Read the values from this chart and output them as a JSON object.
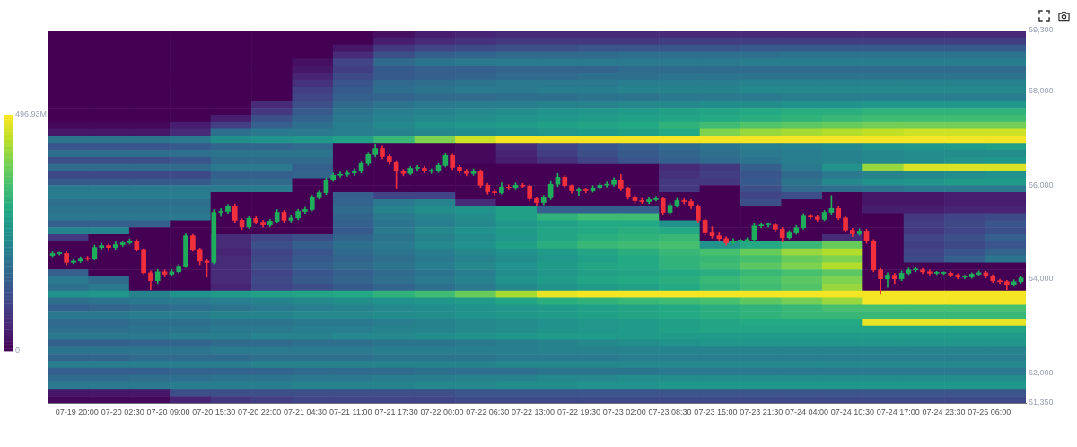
{
  "chart_data": [
    {
      "type": "heatmap",
      "categories": [
        null,
        null,
        null,
        null,
        null,
        null,
        null,
        null,
        null,
        null,
        null,
        null,
        null,
        null,
        null,
        null,
        null,
        null,
        null,
        null,
        null,
        null,
        null,
        null
      ],
      "y_categories": [
        null,
        null,
        null,
        null,
        null,
        null,
        null,
        null,
        null,
        null,
        null,
        null,
        null,
        null,
        null,
        null,
        null,
        null,
        null,
        null,
        null,
        null,
        null,
        null,
        null,
        null,
        null,
        null,
        null,
        null,
        null,
        null,
        null,
        null,
        null,
        null,
        null,
        null,
        null,
        null,
        null,
        null,
        null,
        null,
        null,
        null,
        null,
        null,
        null,
        null,
        null,
        null,
        null
      ],
      "cells": [
        [
          0,
          0,
          0,
          0,
          0,
          0,
          0,
          0,
          20,
          40,
          50,
          60,
          60,
          60,
          60,
          60,
          60,
          60,
          60,
          60,
          60,
          60,
          60,
          60
        ],
        [
          0,
          0,
          0,
          0,
          0,
          0,
          0,
          0,
          40,
          60,
          70,
          80,
          80,
          80,
          80,
          90,
          90,
          90,
          90,
          90,
          90,
          90,
          90,
          90
        ],
        [
          0,
          0,
          0,
          0,
          0,
          0,
          0,
          30,
          80,
          100,
          110,
          120,
          120,
          130,
          130,
          130,
          130,
          140,
          140,
          140,
          140,
          140,
          140,
          140
        ],
        [
          0,
          0,
          0,
          0,
          0,
          0,
          0,
          60,
          120,
          150,
          160,
          170,
          170,
          170,
          180,
          180,
          180,
          180,
          190,
          190,
          190,
          190,
          190,
          190
        ],
        [
          0,
          0,
          0,
          0,
          0,
          0,
          20,
          100,
          170,
          190,
          200,
          200,
          200,
          200,
          200,
          200,
          200,
          210,
          210,
          210,
          210,
          210,
          210,
          210
        ],
        [
          0,
          0,
          0,
          0,
          0,
          0,
          30,
          90,
          140,
          150,
          150,
          160,
          160,
          160,
          170,
          170,
          170,
          170,
          170,
          170,
          170,
          170,
          170,
          170
        ],
        [
          0,
          0,
          0,
          0,
          0,
          0,
          50,
          110,
          140,
          150,
          160,
          170,
          170,
          180,
          180,
          190,
          190,
          190,
          190,
          190,
          190,
          190,
          190,
          190
        ],
        [
          0,
          0,
          0,
          0,
          0,
          0,
          70,
          130,
          170,
          180,
          190,
          200,
          200,
          200,
          210,
          210,
          210,
          220,
          220,
          220,
          220,
          220,
          220,
          220
        ],
        [
          0,
          0,
          0,
          0,
          0,
          0,
          90,
          140,
          180,
          190,
          200,
          200,
          210,
          210,
          220,
          220,
          220,
          230,
          230,
          230,
          230,
          230,
          230,
          230
        ],
        [
          0,
          0,
          0,
          0,
          0,
          0,
          100,
          150,
          160,
          170,
          170,
          180,
          180,
          190,
          190,
          200,
          200,
          200,
          210,
          210,
          210,
          210,
          210,
          210
        ],
        [
          0,
          0,
          0,
          0,
          0,
          60,
          120,
          170,
          190,
          200,
          210,
          210,
          220,
          220,
          230,
          230,
          240,
          240,
          250,
          250,
          260,
          260,
          260,
          260
        ],
        [
          0,
          0,
          0,
          0,
          0,
          80,
          140,
          190,
          210,
          220,
          230,
          240,
          250,
          260,
          270,
          280,
          290,
          300,
          310,
          310,
          320,
          320,
          320,
          320
        ],
        [
          0,
          0,
          0,
          0,
          40,
          120,
          160,
          200,
          220,
          230,
          240,
          250,
          260,
          270,
          280,
          290,
          300,
          310,
          320,
          330,
          340,
          340,
          340,
          340
        ],
        [
          10,
          10,
          10,
          40,
          90,
          150,
          180,
          210,
          230,
          250,
          260,
          270,
          280,
          290,
          300,
          320,
          340,
          360,
          370,
          380,
          390,
          390,
          390,
          390
        ],
        [
          30,
          30,
          30,
          60,
          180,
          200,
          200,
          210,
          220,
          230,
          240,
          250,
          260,
          270,
          280,
          300,
          400,
          420,
          430,
          440,
          450,
          460,
          460,
          460
        ],
        [
          190,
          190,
          190,
          200,
          240,
          250,
          260,
          280,
          330,
          400,
          460,
          490,
          490,
          490,
          490,
          490,
          490,
          490,
          490,
          490,
          490,
          490,
          490,
          490
        ],
        [
          130,
          130,
          130,
          140,
          160,
          160,
          170,
          0,
          0,
          0,
          10,
          60,
          100,
          130,
          150,
          170,
          190,
          210,
          220,
          230,
          250,
          260,
          270,
          280
        ],
        [
          180,
          180,
          180,
          180,
          190,
          190,
          190,
          0,
          0,
          0,
          10,
          50,
          90,
          120,
          140,
          160,
          180,
          200,
          210,
          220,
          230,
          240,
          240,
          240
        ],
        [
          120,
          120,
          120,
          130,
          170,
          170,
          170,
          0,
          0,
          0,
          10,
          40,
          70,
          100,
          130,
          150,
          170,
          190,
          210,
          220,
          230,
          240,
          250,
          260
        ],
        [
          170,
          170,
          170,
          170,
          200,
          200,
          150,
          0,
          0,
          0,
          0,
          0,
          0,
          0,
          0,
          60,
          80,
          150,
          200,
          250,
          420,
          470,
          470,
          470
        ],
        [
          110,
          110,
          110,
          110,
          150,
          150,
          160,
          0,
          0,
          0,
          0,
          0,
          0,
          0,
          0,
          70,
          90,
          130,
          170,
          200,
          220,
          230,
          240,
          250
        ],
        [
          140,
          140,
          140,
          140,
          170,
          170,
          0,
          0,
          0,
          0,
          0,
          0,
          0,
          0,
          0,
          80,
          80,
          140,
          190,
          230,
          250,
          260,
          270,
          270
        ],
        [
          200,
          200,
          200,
          200,
          200,
          200,
          0,
          0,
          0,
          0,
          0,
          0,
          0,
          0,
          0,
          80,
          0,
          120,
          170,
          180,
          190,
          200,
          200,
          200
        ],
        [
          210,
          210,
          210,
          210,
          0,
          0,
          0,
          150,
          100,
          100,
          0,
          0,
          0,
          0,
          0,
          0,
          0,
          100,
          120,
          0,
          30,
          30,
          40,
          40
        ],
        [
          180,
          180,
          180,
          180,
          0,
          0,
          0,
          160,
          200,
          220,
          60,
          0,
          0,
          0,
          0,
          0,
          0,
          120,
          0,
          0,
          30,
          30,
          40,
          40
        ],
        [
          190,
          190,
          190,
          190,
          0,
          0,
          0,
          170,
          220,
          240,
          250,
          280,
          150,
          150,
          150,
          0,
          0,
          0,
          0,
          0,
          40,
          40,
          50,
          50
        ],
        [
          200,
          200,
          200,
          200,
          0,
          0,
          0,
          160,
          200,
          220,
          240,
          280,
          320,
          340,
          340,
          0,
          0,
          0,
          0,
          0,
          0,
          80,
          100,
          110
        ],
        [
          150,
          150,
          150,
          0,
          0,
          0,
          0,
          150,
          190,
          210,
          230,
          260,
          280,
          300,
          300,
          250,
          0,
          0,
          0,
          0,
          0,
          90,
          110,
          130
        ],
        [
          220,
          220,
          0,
          0,
          0,
          0,
          0,
          140,
          200,
          230,
          250,
          270,
          290,
          300,
          310,
          300,
          0,
          0,
          0,
          0,
          0,
          80,
          100,
          120
        ],
        [
          80,
          0,
          0,
          0,
          60,
          100,
          120,
          160,
          190,
          220,
          240,
          260,
          290,
          310,
          320,
          330,
          0,
          0,
          0,
          60,
          0,
          100,
          120,
          150
        ],
        [
          0,
          0,
          0,
          0,
          60,
          120,
          150,
          180,
          200,
          230,
          250,
          280,
          310,
          330,
          340,
          350,
          250,
          300,
          330,
          380,
          0,
          90,
          110,
          130
        ],
        [
          0,
          0,
          0,
          0,
          50,
          100,
          130,
          170,
          190,
          210,
          230,
          250,
          270,
          290,
          310,
          330,
          350,
          380,
          420,
          440,
          0,
          100,
          130,
          160
        ],
        [
          0,
          0,
          0,
          0,
          60,
          110,
          140,
          160,
          180,
          200,
          220,
          240,
          260,
          280,
          300,
          320,
          330,
          350,
          380,
          400,
          0,
          110,
          150,
          190
        ],
        [
          0,
          0,
          0,
          0,
          60,
          120,
          150,
          170,
          190,
          210,
          230,
          250,
          270,
          290,
          300,
          320,
          340,
          370,
          400,
          440,
          0,
          0,
          0,
          0
        ],
        [
          150,
          0,
          0,
          0,
          60,
          100,
          130,
          150,
          170,
          190,
          210,
          240,
          260,
          280,
          290,
          300,
          310,
          330,
          350,
          370,
          0,
          0,
          0,
          0
        ],
        [
          200,
          170,
          0,
          0,
          60,
          110,
          140,
          160,
          180,
          200,
          220,
          250,
          270,
          290,
          300,
          310,
          330,
          350,
          370,
          400,
          0,
          0,
          0,
          0
        ],
        [
          180,
          200,
          0,
          0,
          50,
          100,
          120,
          140,
          160,
          180,
          200,
          230,
          250,
          270,
          280,
          300,
          320,
          340,
          360,
          420,
          0,
          0,
          0,
          0
        ],
        [
          250,
          260,
          220,
          250,
          270,
          280,
          290,
          300,
          320,
          340,
          380,
          430,
          480,
          490,
          490,
          490,
          490,
          490,
          490,
          490,
          490,
          490,
          490,
          490
        ],
        [
          180,
          190,
          200,
          200,
          210,
          220,
          230,
          240,
          250,
          260,
          270,
          290,
          310,
          320,
          330,
          340,
          350,
          370,
          390,
          420,
          490,
          490,
          490,
          490
        ],
        [
          150,
          160,
          170,
          180,
          190,
          200,
          210,
          220,
          230,
          240,
          250,
          260,
          270,
          280,
          290,
          300,
          310,
          320,
          330,
          350,
          350,
          350,
          350,
          350
        ],
        [
          200,
          200,
          210,
          210,
          220,
          220,
          230,
          230,
          240,
          240,
          250,
          260,
          270,
          280,
          290,
          300,
          310,
          320,
          330,
          330,
          330,
          330,
          330,
          330
        ],
        [
          170,
          170,
          180,
          180,
          190,
          190,
          200,
          200,
          210,
          220,
          230,
          240,
          250,
          260,
          270,
          280,
          290,
          300,
          300,
          300,
          480,
          480,
          480,
          480
        ],
        [
          180,
          180,
          190,
          190,
          200,
          200,
          210,
          210,
          220,
          220,
          230,
          240,
          250,
          260,
          270,
          280,
          290,
          290,
          290,
          290,
          290,
          290,
          290,
          290
        ],
        [
          200,
          200,
          200,
          210,
          210,
          220,
          220,
          230,
          230,
          240,
          250,
          260,
          270,
          270,
          270,
          270,
          270,
          270,
          270,
          270,
          270,
          270,
          270,
          270
        ],
        [
          150,
          150,
          160,
          160,
          170,
          170,
          180,
          180,
          190,
          190,
          200,
          210,
          220,
          230,
          240,
          250,
          260,
          260,
          260,
          260,
          260,
          260,
          260,
          260
        ],
        [
          190,
          190,
          190,
          190,
          200,
          200,
          200,
          200,
          210,
          210,
          210,
          210,
          220,
          220,
          220,
          220,
          220,
          220,
          220,
          220,
          220,
          220,
          220,
          220
        ],
        [
          160,
          160,
          170,
          170,
          170,
          180,
          180,
          180,
          190,
          190,
          190,
          200,
          200,
          200,
          210,
          210,
          210,
          210,
          210,
          210,
          210,
          210,
          210,
          210
        ],
        [
          210,
          210,
          210,
          210,
          210,
          220,
          220,
          220,
          220,
          220,
          220,
          230,
          230,
          230,
          230,
          230,
          230,
          230,
          230,
          230,
          230,
          230,
          230,
          230
        ],
        [
          150,
          150,
          150,
          160,
          160,
          160,
          170,
          170,
          170,
          180,
          180,
          180,
          190,
          190,
          190,
          200,
          200,
          200,
          200,
          200,
          200,
          200,
          200,
          200
        ],
        [
          170,
          170,
          180,
          180,
          190,
          190,
          200,
          200,
          210,
          210,
          220,
          220,
          230,
          230,
          240,
          240,
          240,
          240,
          240,
          240,
          240,
          240,
          240,
          240
        ],
        [
          200,
          200,
          200,
          210,
          210,
          210,
          220,
          220,
          220,
          230,
          230,
          240,
          240,
          250,
          250,
          260,
          260,
          260,
          260,
          260,
          260,
          260,
          260,
          260
        ],
        [
          30,
          30,
          30,
          120,
          120,
          120,
          120,
          120,
          120,
          120,
          130,
          130,
          130,
          130,
          130,
          130,
          130,
          130,
          130,
          130,
          130,
          130,
          130,
          130
        ],
        [
          10,
          10,
          10,
          50,
          80,
          90,
          100,
          100,
          100,
          100,
          110,
          110,
          110,
          110,
          110,
          110,
          110,
          110,
          110,
          110,
          110,
          110,
          110,
          110
        ]
      ],
      "clim": [
        0,
        496.93
      ],
      "cticks": [
        {
          "value": 0,
          "label": "0"
        },
        {
          "value": 496.93,
          "label": "496.93M"
        }
      ]
    },
    {
      "type": "candlestick",
      "xlim": [
        "--07-19T15:48",
        "--07-25T11:12"
      ],
      "xticks": [
        {
          "value": "--07-19T20:00",
          "label": "07-19 20:00"
        },
        {
          "value": "--07-20T02:30",
          "label": "07-20 02:30"
        },
        {
          "value": "--07-20T09:00",
          "label": "07-20 09:00"
        },
        {
          "value": "--07-20T15:30",
          "label": "07-20 15:30"
        },
        {
          "value": "--07-20T22:00",
          "label": "07-20 22:00"
        },
        {
          "value": "--07-21T04:30",
          "label": "07-21 04:30"
        },
        {
          "value": "--07-21T11:00",
          "label": "07-21 11:00"
        },
        {
          "value": "--07-21T17:30",
          "label": "07-21 17:30"
        },
        {
          "value": "--07-22T00:00",
          "label": "07-22 00:00"
        },
        {
          "value": "--07-22T06:30",
          "label": "07-22 06:30"
        },
        {
          "value": "--07-22T13:00",
          "label": "07-22 13:00"
        },
        {
          "value": "--07-22T19:30",
          "label": "07-22 19:30"
        },
        {
          "value": "--07-23T02:00",
          "label": "07-23 02:00"
        },
        {
          "value": "--07-23T08:30",
          "label": "07-23 08:30"
        },
        {
          "value": "--07-23T15:00",
          "label": "07-23 15:00"
        },
        {
          "value": "--07-23T21:30",
          "label": "07-23 21:30"
        },
        {
          "value": "--07-24T04:00",
          "label": "07-24 04:00"
        },
        {
          "value": "--07-24T10:30",
          "label": "07-24 10:30"
        },
        {
          "value": "--07-24T17:00",
          "label": "07-24 17:00"
        },
        {
          "value": "--07-24T23:30",
          "label": "07-24 23:30"
        },
        {
          "value": "--07-25T06:00",
          "label": "07-25 06:00"
        }
      ],
      "ylim": [
        61350,
        69300
      ],
      "yticks": [
        {
          "value": 61350,
          "label": "61,350"
        },
        {
          "value": 62000,
          "label": "62,000"
        },
        {
          "value": 64000,
          "label": "64,000"
        },
        {
          "value": 66000,
          "label": "66,000"
        },
        {
          "value": 68000,
          "label": "68,000"
        },
        {
          "value": 69300,
          "label": "69,300"
        }
      ],
      "x": [
        "--07-19T16:30",
        "--07-19T17:30",
        "--07-19T18:30",
        "--07-19T19:30",
        "--07-19T20:30",
        "--07-19T21:30",
        "--07-19T22:30",
        "--07-19T23:30",
        "--07-20T00:30",
        "--07-20T01:30",
        "--07-20T02:30",
        "--07-20T03:30",
        "--07-20T04:30",
        "--07-20T05:30",
        "--07-20T06:30",
        "--07-20T07:30",
        "--07-20T08:30",
        "--07-20T09:30",
        "--07-20T10:30",
        "--07-20T11:30",
        "--07-20T12:30",
        "--07-20T13:30",
        "--07-20T14:30",
        "--07-20T15:30",
        "--07-20T16:30",
        "--07-20T17:30",
        "--07-20T18:30",
        "--07-20T19:30",
        "--07-20T20:30",
        "--07-20T21:30",
        "--07-20T22:30",
        "--07-20T23:30",
        "--07-21T00:30",
        "--07-21T01:30",
        "--07-21T02:30",
        "--07-21T03:30",
        "--07-21T04:30",
        "--07-21T05:30",
        "--07-21T06:30",
        "--07-21T07:30",
        "--07-21T08:30",
        "--07-21T09:30",
        "--07-21T10:30",
        "--07-21T11:30",
        "--07-21T12:30",
        "--07-21T13:30",
        "--07-21T14:30",
        "--07-21T15:30",
        "--07-21T16:30",
        "--07-21T17:30",
        "--07-21T18:30",
        "--07-21T19:30",
        "--07-21T20:30",
        "--07-21T21:30",
        "--07-21T22:30",
        "--07-21T23:30",
        "--07-22T00:30",
        "--07-22T01:30",
        "--07-22T02:30",
        "--07-22T03:30",
        "--07-22T04:30",
        "--07-22T05:30",
        "--07-22T06:30",
        "--07-22T07:30",
        "--07-22T08:30",
        "--07-22T09:30",
        "--07-22T10:30",
        "--07-22T11:30",
        "--07-22T12:30",
        "--07-22T13:30",
        "--07-22T14:30",
        "--07-22T15:30",
        "--07-22T16:30",
        "--07-22T17:30",
        "--07-22T18:30",
        "--07-22T19:30",
        "--07-22T20:30",
        "--07-22T21:30",
        "--07-22T22:30",
        "--07-22T23:30",
        "--07-23T00:30",
        "--07-23T01:30",
        "--07-23T02:30",
        "--07-23T03:30",
        "--07-23T04:30",
        "--07-23T05:30",
        "--07-23T06:30",
        "--07-23T07:30",
        "--07-23T08:30",
        "--07-23T09:30",
        "--07-23T10:30",
        "--07-23T11:30",
        "--07-23T12:30",
        "--07-23T13:30",
        "--07-23T14:30",
        "--07-23T15:30",
        "--07-23T16:30",
        "--07-23T17:30",
        "--07-23T18:30",
        "--07-23T19:30",
        "--07-23T20:30",
        "--07-23T21:30",
        "--07-23T22:30",
        "--07-23T23:30",
        "--07-24T00:30",
        "--07-24T01:30",
        "--07-24T02:30",
        "--07-24T03:30",
        "--07-24T04:30",
        "--07-24T05:30",
        "--07-24T06:30",
        "--07-24T07:30",
        "--07-24T08:30",
        "--07-24T09:30",
        "--07-24T10:30",
        "--07-24T11:30",
        "--07-24T12:30",
        "--07-24T13:30",
        "--07-24T14:30",
        "--07-24T15:30",
        "--07-24T16:30",
        "--07-24T17:30",
        "--07-24T18:30",
        "--07-24T19:30",
        "--07-24T20:30",
        "--07-24T21:30",
        "--07-24T22:30",
        "--07-24T23:30",
        "--07-25T00:30",
        "--07-25T01:30",
        "--07-25T02:30",
        "--07-25T03:30",
        "--07-25T04:30",
        "--07-25T05:30",
        "--07-25T06:30",
        "--07-25T07:30",
        "--07-25T08:30",
        "--07-25T09:30",
        "--07-25T10:30"
      ],
      "ohlc": [
        [
          64500,
          64580,
          64470,
          64540
        ],
        [
          64540,
          64570,
          64510,
          64540
        ],
        [
          64540,
          64580,
          64300,
          64350
        ],
        [
          64350,
          64420,
          64320,
          64380
        ],
        [
          64380,
          64470,
          64350,
          64440
        ],
        [
          64440,
          64480,
          64390,
          64420
        ],
        [
          64420,
          64720,
          64400,
          64670
        ],
        [
          64670,
          64760,
          64620,
          64710
        ],
        [
          64710,
          64750,
          64600,
          64670
        ],
        [
          64670,
          64790,
          64630,
          64730
        ],
        [
          64730,
          64800,
          64690,
          64770
        ],
        [
          64770,
          64850,
          64740,
          64810
        ],
        [
          64810,
          64840,
          64590,
          64630
        ],
        [
          64630,
          64650,
          64100,
          64130
        ],
        [
          64130,
          64170,
          63770,
          63960
        ],
        [
          63960,
          64200,
          63900,
          64150
        ],
        [
          64150,
          64190,
          64040,
          64100
        ],
        [
          64100,
          64200,
          64060,
          64150
        ],
        [
          64150,
          64310,
          64120,
          64270
        ],
        [
          64270,
          64960,
          64240,
          64920
        ],
        [
          64920,
          64950,
          64590,
          64630
        ],
        [
          64630,
          64660,
          64300,
          64380
        ],
        [
          64380,
          64420,
          64040,
          64350
        ],
        [
          64350,
          65480,
          64320,
          65420
        ],
        [
          65420,
          65500,
          65330,
          65440
        ],
        [
          65440,
          65590,
          65400,
          65540
        ],
        [
          65540,
          65600,
          65200,
          65250
        ],
        [
          65250,
          65280,
          65050,
          65110
        ],
        [
          65110,
          65330,
          65080,
          65290
        ],
        [
          65290,
          65330,
          65170,
          65210
        ],
        [
          65210,
          65250,
          65100,
          65150
        ],
        [
          65150,
          65270,
          65110,
          65230
        ],
        [
          65230,
          65480,
          65200,
          65420
        ],
        [
          65420,
          65460,
          65200,
          65250
        ],
        [
          65250,
          65350,
          65210,
          65300
        ],
        [
          65300,
          65480,
          65260,
          65440
        ],
        [
          65440,
          65530,
          65400,
          65480
        ],
        [
          65480,
          65780,
          65450,
          65730
        ],
        [
          65730,
          65880,
          65700,
          65840
        ],
        [
          65840,
          66160,
          65800,
          66110
        ],
        [
          66110,
          66260,
          66080,
          66210
        ],
        [
          66210,
          66280,
          66170,
          66230
        ],
        [
          66230,
          66320,
          66190,
          66260
        ],
        [
          66260,
          66350,
          66210,
          66300
        ],
        [
          66300,
          66510,
          66260,
          66460
        ],
        [
          66460,
          66700,
          66420,
          66650
        ],
        [
          66650,
          66880,
          66600,
          66780
        ],
        [
          66780,
          66830,
          66560,
          66610
        ],
        [
          66610,
          66650,
          66440,
          66490
        ],
        [
          66490,
          66520,
          65920,
          66300
        ],
        [
          66300,
          66340,
          66200,
          66250
        ],
        [
          66250,
          66400,
          66220,
          66360
        ],
        [
          66360,
          66420,
          66320,
          66360
        ],
        [
          66360,
          66400,
          66260,
          66300
        ],
        [
          66300,
          66350,
          66250,
          66300
        ],
        [
          66300,
          66460,
          66270,
          66420
        ],
        [
          66420,
          66680,
          66390,
          66630
        ],
        [
          66630,
          66660,
          66330,
          66380
        ],
        [
          66380,
          66420,
          66260,
          66300
        ],
        [
          66300,
          66340,
          66200,
          66250
        ],
        [
          66250,
          66350,
          66210,
          66300
        ],
        [
          66300,
          66330,
          65950,
          66000
        ],
        [
          66000,
          66040,
          65810,
          65860
        ],
        [
          65860,
          65900,
          65790,
          65840
        ],
        [
          65840,
          66050,
          65810,
          65960
        ],
        [
          65960,
          66010,
          65900,
          65940
        ],
        [
          65940,
          66050,
          65900,
          66000
        ],
        [
          66000,
          66040,
          65940,
          65980
        ],
        [
          65980,
          66010,
          65660,
          65710
        ],
        [
          65710,
          65750,
          65560,
          65630
        ],
        [
          65630,
          65780,
          65580,
          65730
        ],
        [
          65730,
          66080,
          65690,
          66020
        ],
        [
          66020,
          66250,
          65970,
          66170
        ],
        [
          66170,
          66210,
          65930,
          65990
        ],
        [
          65990,
          66010,
          65830,
          65880
        ],
        [
          65880,
          65950,
          65780,
          65900
        ],
        [
          65900,
          65940,
          65840,
          65880
        ],
        [
          65880,
          65990,
          65850,
          65940
        ],
        [
          65940,
          66040,
          65900,
          66000
        ],
        [
          66000,
          66070,
          65960,
          66020
        ],
        [
          66020,
          66160,
          65980,
          66110
        ],
        [
          66110,
          66230,
          65880,
          65920
        ],
        [
          65920,
          65960,
          65700,
          65750
        ],
        [
          65750,
          65790,
          65620,
          65670
        ],
        [
          65670,
          65720,
          65610,
          65650
        ],
        [
          65650,
          65730,
          65610,
          65690
        ],
        [
          65690,
          65760,
          65660,
          65710
        ],
        [
          65710,
          65750,
          65380,
          65420
        ],
        [
          65420,
          65620,
          65380,
          65570
        ],
        [
          65570,
          65720,
          65530,
          65670
        ],
        [
          65670,
          65710,
          65600,
          65650
        ],
        [
          65650,
          65690,
          65500,
          65550
        ],
        [
          65550,
          65580,
          65200,
          65250
        ],
        [
          65250,
          65280,
          64930,
          64980
        ],
        [
          64980,
          65110,
          64870,
          64920
        ],
        [
          64920,
          64980,
          64810,
          64860
        ],
        [
          64860,
          64900,
          64720,
          64770
        ],
        [
          64770,
          64860,
          64740,
          64810
        ],
        [
          64810,
          64860,
          64760,
          64810
        ],
        [
          64810,
          64880,
          64780,
          64840
        ],
        [
          64840,
          65180,
          64800,
          65130
        ],
        [
          65130,
          65190,
          65090,
          65150
        ],
        [
          65150,
          65200,
          65100,
          65150
        ],
        [
          65150,
          65190,
          65010,
          65060
        ],
        [
          65060,
          65100,
          64790,
          64880
        ],
        [
          64880,
          65030,
          64850,
          64980
        ],
        [
          64980,
          65140,
          64950,
          65090
        ],
        [
          65090,
          65390,
          65060,
          65340
        ],
        [
          65340,
          65380,
          65280,
          65320
        ],
        [
          65320,
          65360,
          65230,
          65270
        ],
        [
          65270,
          65460,
          65240,
          65420
        ],
        [
          65420,
          65780,
          65380,
          65500
        ],
        [
          65500,
          65540,
          65260,
          65300
        ],
        [
          65300,
          65330,
          64990,
          65040
        ],
        [
          65040,
          65080,
          64900,
          64960
        ],
        [
          64960,
          65070,
          64930,
          65020
        ],
        [
          65020,
          65060,
          64760,
          64810
        ],
        [
          64810,
          64840,
          64150,
          64190
        ],
        [
          64190,
          64220,
          63670,
          64000
        ],
        [
          64000,
          64130,
          63820,
          64080
        ],
        [
          64080,
          64120,
          63900,
          64000
        ],
        [
          64000,
          64170,
          63960,
          64120
        ],
        [
          64120,
          64230,
          64090,
          64190
        ],
        [
          64190,
          64240,
          64150,
          64190
        ],
        [
          64190,
          64220,
          64110,
          64150
        ],
        [
          64150,
          64190,
          64080,
          64120
        ],
        [
          64120,
          64160,
          64090,
          64120
        ],
        [
          64120,
          64150,
          64090,
          64120
        ],
        [
          64120,
          64150,
          64040,
          64080
        ],
        [
          64080,
          64110,
          64000,
          64040
        ],
        [
          64040,
          64080,
          64000,
          64040
        ],
        [
          64040,
          64130,
          64010,
          64100
        ],
        [
          64100,
          64170,
          64070,
          64130
        ],
        [
          64130,
          64160,
          64020,
          64060
        ],
        [
          64060,
          64090,
          63920,
          63960
        ],
        [
          63960,
          63990,
          63900,
          63940
        ],
        [
          63940,
          63970,
          63770,
          63870
        ],
        [
          63870,
          63980,
          63840,
          63940
        ],
        [
          63940,
          64060,
          63910,
          64020
        ]
      ]
    }
  ]
}
